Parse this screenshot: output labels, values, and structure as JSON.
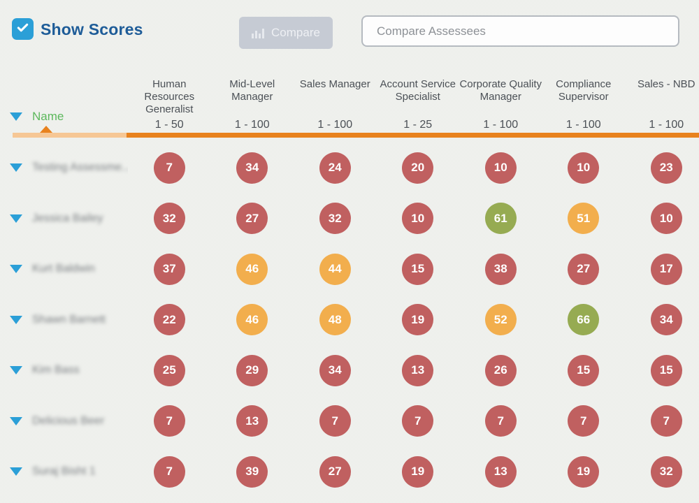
{
  "controls": {
    "show_scores_label": "Show Scores",
    "show_scores_checked": true,
    "compare_button_label": "Compare",
    "search_placeholder": "Compare Assessees",
    "search_value": ""
  },
  "table": {
    "name_header": "Name",
    "columns": [
      {
        "label": "Human Resources Generalist",
        "range": "1 - 50"
      },
      {
        "label": "Mid-Level Manager",
        "range": "1 - 100"
      },
      {
        "label": "Sales Manager",
        "range": "1 - 100"
      },
      {
        "label": "Account Service Specialist",
        "range": "1 - 25"
      },
      {
        "label": "Corporate Quality Manager",
        "range": "1 - 100"
      },
      {
        "label": "Compliance Supervisor",
        "range": "1 - 100"
      },
      {
        "label": "Sales - NBD",
        "range": "1 - 100"
      }
    ],
    "rows": [
      {
        "name": "Testing Assessme...",
        "scores": [
          {
            "value": 7,
            "level": "red"
          },
          {
            "value": 34,
            "level": "red"
          },
          {
            "value": 24,
            "level": "red"
          },
          {
            "value": 20,
            "level": "red"
          },
          {
            "value": 10,
            "level": "red"
          },
          {
            "value": 10,
            "level": "red"
          },
          {
            "value": 23,
            "level": "red"
          }
        ]
      },
      {
        "name": "Jessica Bailey",
        "scores": [
          {
            "value": 32,
            "level": "red"
          },
          {
            "value": 27,
            "level": "red"
          },
          {
            "value": 32,
            "level": "red"
          },
          {
            "value": 10,
            "level": "red"
          },
          {
            "value": 61,
            "level": "green"
          },
          {
            "value": 51,
            "level": "orange"
          },
          {
            "value": 10,
            "level": "red"
          }
        ]
      },
      {
        "name": "Kurt Baldwin",
        "scores": [
          {
            "value": 37,
            "level": "red"
          },
          {
            "value": 46,
            "level": "orange"
          },
          {
            "value": 44,
            "level": "orange"
          },
          {
            "value": 15,
            "level": "red"
          },
          {
            "value": 38,
            "level": "red"
          },
          {
            "value": 27,
            "level": "red"
          },
          {
            "value": 17,
            "level": "red"
          }
        ]
      },
      {
        "name": "Shawn Barnett",
        "scores": [
          {
            "value": 22,
            "level": "red"
          },
          {
            "value": 46,
            "level": "orange"
          },
          {
            "value": 48,
            "level": "orange"
          },
          {
            "value": 19,
            "level": "red"
          },
          {
            "value": 52,
            "level": "orange"
          },
          {
            "value": 66,
            "level": "green"
          },
          {
            "value": 34,
            "level": "red"
          }
        ]
      },
      {
        "name": "Kim Bass",
        "scores": [
          {
            "value": 25,
            "level": "red"
          },
          {
            "value": 29,
            "level": "red"
          },
          {
            "value": 34,
            "level": "red"
          },
          {
            "value": 13,
            "level": "red"
          },
          {
            "value": 26,
            "level": "red"
          },
          {
            "value": 15,
            "level": "red"
          },
          {
            "value": 15,
            "level": "red"
          }
        ]
      },
      {
        "name": "Delicious Beer",
        "scores": [
          {
            "value": 7,
            "level": "red"
          },
          {
            "value": 13,
            "level": "red"
          },
          {
            "value": 7,
            "level": "red"
          },
          {
            "value": 7,
            "level": "red"
          },
          {
            "value": 7,
            "level": "red"
          },
          {
            "value": 7,
            "level": "red"
          },
          {
            "value": 7,
            "level": "red"
          }
        ]
      },
      {
        "name": "Suraj Bisht 1",
        "scores": [
          {
            "value": 7,
            "level": "red"
          },
          {
            "value": 39,
            "level": "red"
          },
          {
            "value": 27,
            "level": "red"
          },
          {
            "value": 19,
            "level": "red"
          },
          {
            "value": 13,
            "level": "red"
          },
          {
            "value": 19,
            "level": "red"
          },
          {
            "value": 32,
            "level": "red"
          }
        ]
      }
    ]
  },
  "colors": {
    "red": "#c06060",
    "orange": "#f2ae4d",
    "green": "#96ab52",
    "accent_blue": "#2b9fd7",
    "title_blue": "#1e5c98",
    "name_green": "#5cb85c",
    "bar_orange": "#e8821e",
    "bar_light_orange": "#f6c795"
  }
}
